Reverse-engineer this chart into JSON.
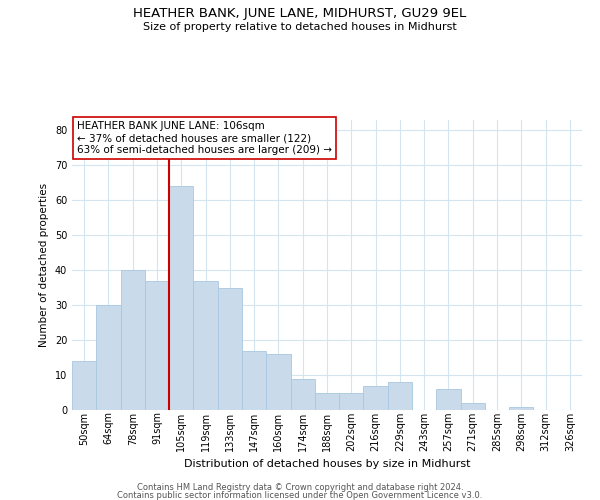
{
  "title": "HEATHER BANK, JUNE LANE, MIDHURST, GU29 9EL",
  "subtitle": "Size of property relative to detached houses in Midhurst",
  "xlabel": "Distribution of detached houses by size in Midhurst",
  "ylabel": "Number of detached properties",
  "categories": [
    "50sqm",
    "64sqm",
    "78sqm",
    "91sqm",
    "105sqm",
    "119sqm",
    "133sqm",
    "147sqm",
    "160sqm",
    "174sqm",
    "188sqm",
    "202sqm",
    "216sqm",
    "229sqm",
    "243sqm",
    "257sqm",
    "271sqm",
    "285sqm",
    "298sqm",
    "312sqm",
    "326sqm"
  ],
  "values": [
    14,
    30,
    40,
    37,
    64,
    37,
    35,
    17,
    16,
    9,
    5,
    5,
    7,
    8,
    0,
    6,
    2,
    0,
    1,
    0,
    0
  ],
  "bar_color": "#c9daea",
  "bar_edge_color": "#a8c8e0",
  "vline_x_index": 4,
  "vline_color": "#cc0000",
  "annotation_line1": "HEATHER BANK JUNE LANE: 106sqm",
  "annotation_line2": "← 37% of detached houses are smaller (122)",
  "annotation_line3": "63% of semi-detached houses are larger (209) →",
  "annotation_box_color": "#ffffff",
  "annotation_box_edge_color": "#cc0000",
  "ylim": [
    0,
    83
  ],
  "yticks": [
    0,
    10,
    20,
    30,
    40,
    50,
    60,
    70,
    80
  ],
  "footer_line1": "Contains HM Land Registry data © Crown copyright and database right 2024.",
  "footer_line2": "Contains public sector information licensed under the Open Government Licence v3.0.",
  "background_color": "#ffffff",
  "grid_color": "#d5e5f0",
  "title_fontsize": 9.5,
  "subtitle_fontsize": 8.0,
  "xlabel_fontsize": 8.0,
  "ylabel_fontsize": 7.5,
  "tick_fontsize": 7.0,
  "footer_fontsize": 6.0
}
